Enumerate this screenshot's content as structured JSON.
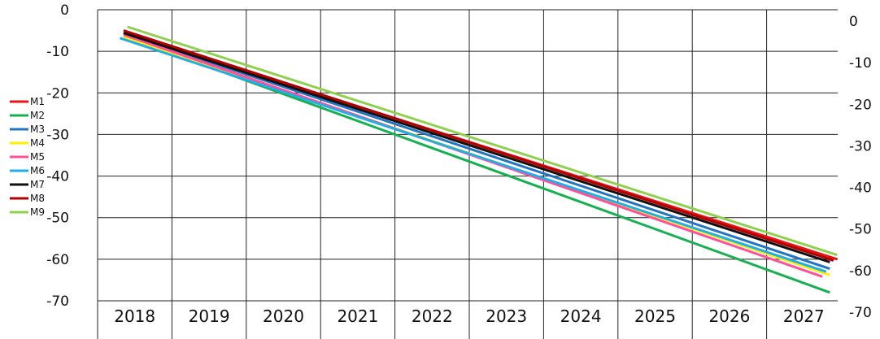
{
  "chart_data": {
    "type": "line",
    "title": "",
    "xlabel": "",
    "ylabel": "",
    "x_ticks": [
      "2018",
      "2019",
      "2020",
      "2021",
      "2022",
      "2023",
      "2024",
      "2025",
      "2026",
      "2027"
    ],
    "y_ticks_left": [
      "0",
      "-10",
      "-20",
      "-30",
      "-40",
      "-50",
      "-60",
      "-70"
    ],
    "y_ticks_right": [
      "0",
      "-10",
      "-20",
      "-30",
      "-40",
      "-50",
      "-60",
      "-70"
    ],
    "ylim": [
      -70,
      0
    ],
    "grid": true,
    "legend_position": "left",
    "series": [
      {
        "name": "M1",
        "color": "#ee1111",
        "x": [
          2018.1,
          2027.7
        ],
        "y": [
          -5.3,
          -60.0
        ]
      },
      {
        "name": "M2",
        "color": "#16b050",
        "x": [
          2018.1,
          2027.6
        ],
        "y": [
          -6.3,
          -68.0
        ]
      },
      {
        "name": "M3",
        "color": "#2574c4",
        "x": [
          2018.1,
          2027.6
        ],
        "y": [
          -5.7,
          -62.3
        ]
      },
      {
        "name": "M4",
        "color": "#ffee00",
        "x": [
          2018.1,
          2027.6
        ],
        "y": [
          -6.5,
          -63.8
        ]
      },
      {
        "name": "M5",
        "color": "#ff4f9a",
        "x": [
          2018.1,
          2027.5
        ],
        "y": [
          -6.0,
          -64.2
        ]
      },
      {
        "name": "M6",
        "color": "#20aee8",
        "x": [
          2018.05,
          2027.55
        ],
        "y": [
          -6.8,
          -63.0
        ]
      },
      {
        "name": "M7",
        "color": "#111111",
        "x": [
          2018.1,
          2027.6
        ],
        "y": [
          -5.6,
          -60.7
        ]
      },
      {
        "name": "M8",
        "color": "#b00000",
        "x": [
          2018.1,
          2027.65
        ],
        "y": [
          -5.0,
          -60.3
        ]
      },
      {
        "name": "M9",
        "color": "#8fd14f",
        "x": [
          2018.15,
          2027.7
        ],
        "y": [
          -4.1,
          -59.0
        ]
      }
    ]
  }
}
